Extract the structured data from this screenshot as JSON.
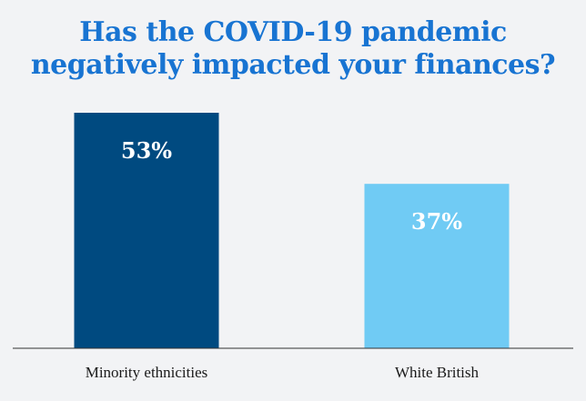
{
  "chart_data": {
    "type": "bar",
    "title": "Has the COVID-19 pandemic negatively impacted your finances?",
    "title_lines": [
      "Has the COVID-19 pandemic",
      "negatively impacted your finances?"
    ],
    "categories": [
      "Minority ethnicities",
      "White British"
    ],
    "values": [
      53,
      37
    ],
    "value_labels": [
      "53%",
      "37%"
    ],
    "colors": [
      "#004a80",
      "#70cbf4"
    ],
    "title_color": "#1874d2",
    "background": "#f2f3f5",
    "ylim": [
      0,
      60
    ],
    "grid": false,
    "legend": "none",
    "xlabel": "",
    "ylabel": ""
  }
}
